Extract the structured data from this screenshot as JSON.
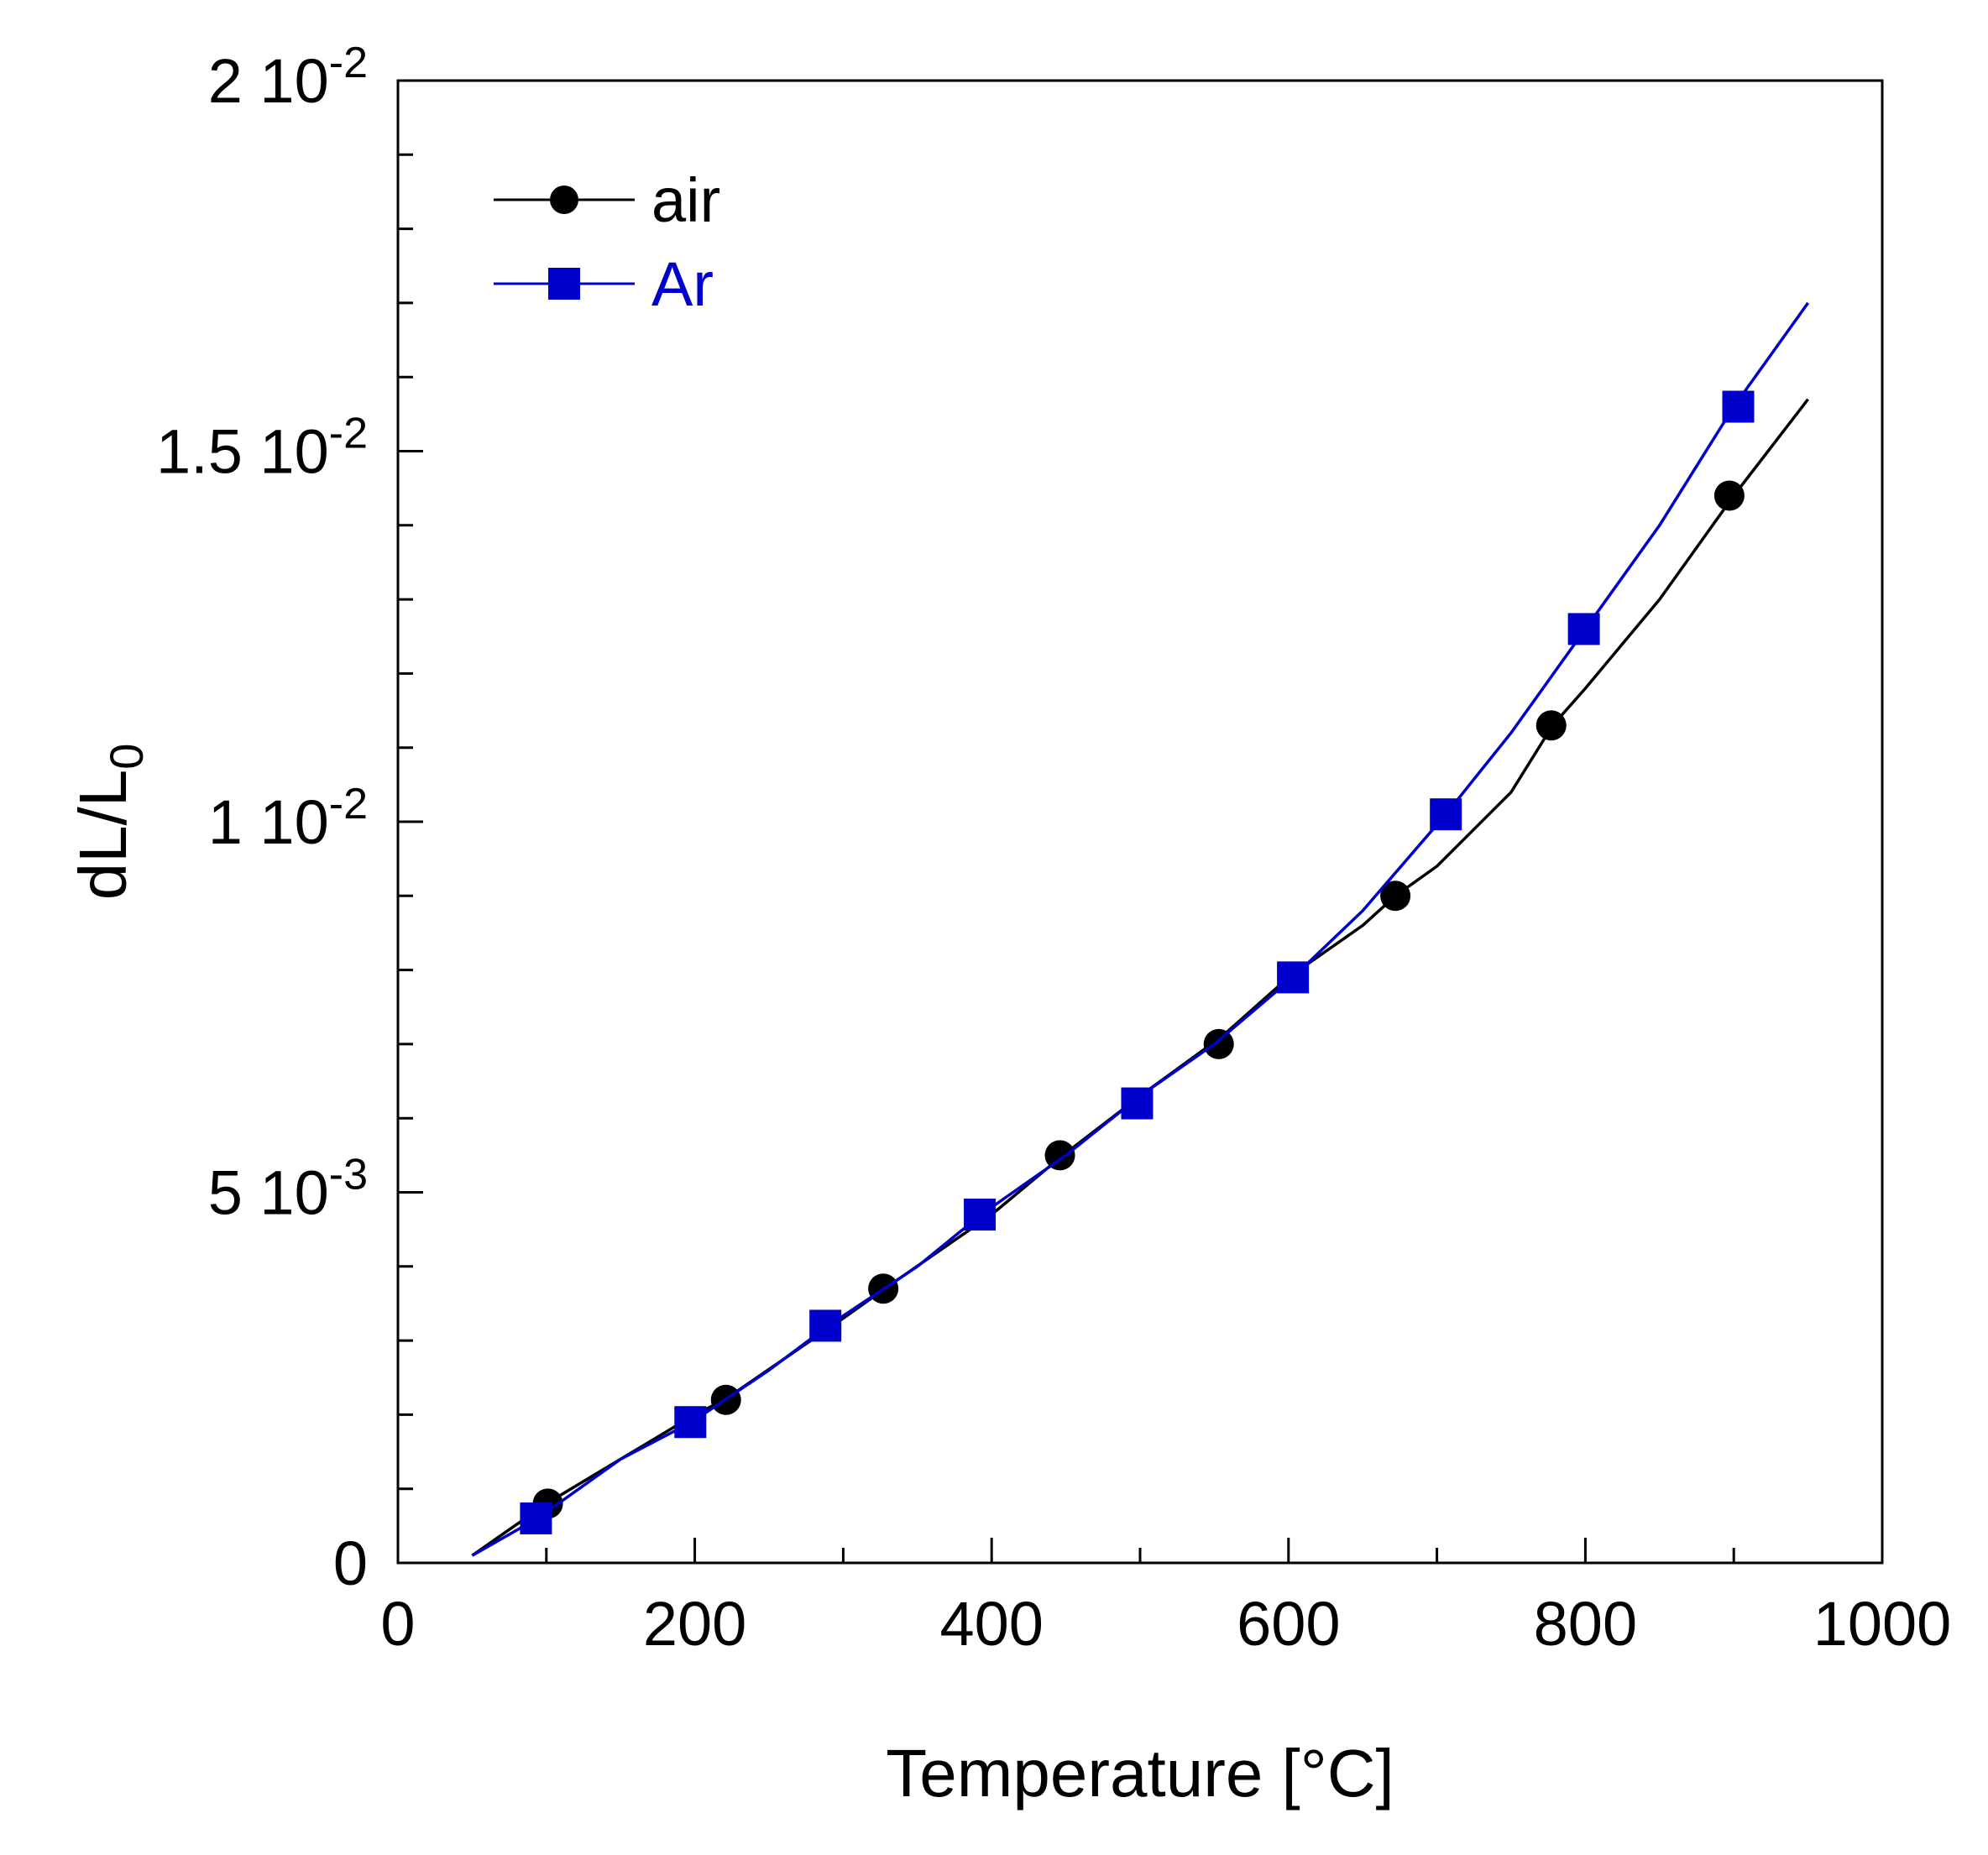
{
  "chart_data": {
    "type": "line",
    "xlabel": "Temperature [°C]",
    "ylabel_main": "dL/L",
    "ylabel_sub": "0",
    "xlim": [
      0,
      1000
    ],
    "ylim": [
      0,
      0.02
    ],
    "grid": false,
    "legend_position": "top-left",
    "x_ticks": [
      {
        "value": 0,
        "label": "0"
      },
      {
        "value": 200,
        "label": "200"
      },
      {
        "value": 400,
        "label": "400"
      },
      {
        "value": 600,
        "label": "600"
      },
      {
        "value": 800,
        "label": "800"
      },
      {
        "value": 1000,
        "label": "1000"
      }
    ],
    "y_ticks": [
      {
        "value": 0,
        "mant": "0",
        "exp": ""
      },
      {
        "value": 0.005,
        "mant": "5 10",
        "exp": "-3"
      },
      {
        "value": 0.01,
        "mant": "1 10",
        "exp": "-2"
      },
      {
        "value": 0.015,
        "mant": "1.5 10",
        "exp": "-2"
      },
      {
        "value": 0.02,
        "mant": "2 10",
        "exp": "-2"
      }
    ],
    "series": [
      {
        "name": "air",
        "color": "#000000",
        "marker": "circle",
        "curve": [
          [
            50,
            0.0001
          ],
          [
            100,
            0.0008
          ],
          [
            150,
            0.0014
          ],
          [
            200,
            0.002
          ],
          [
            220,
            0.0022
          ],
          [
            300,
            0.0033
          ],
          [
            328,
            0.0037
          ],
          [
            400,
            0.0047
          ],
          [
            448,
            0.0055
          ],
          [
            500,
            0.0063
          ],
          [
            555,
            0.0071
          ],
          [
            600,
            0.0079
          ],
          [
            650,
            0.0086
          ],
          [
            672,
            0.009
          ],
          [
            700,
            0.0094
          ],
          [
            750,
            0.0104
          ],
          [
            778,
            0.0113
          ],
          [
            800,
            0.0118
          ],
          [
            850,
            0.013
          ],
          [
            900,
            0.0144
          ],
          [
            950,
            0.0157
          ]
        ],
        "markers": [
          [
            101,
            0.0008
          ],
          [
            221,
            0.0022
          ],
          [
            327,
            0.0037
          ],
          [
            446,
            0.0055
          ],
          [
            553,
            0.007
          ],
          [
            672,
            0.009
          ],
          [
            777,
            0.0113
          ],
          [
            897,
            0.0144
          ]
        ]
      },
      {
        "name": "Ar",
        "color": "#0000cc",
        "marker": "square",
        "curve": [
          [
            50,
            0.0001
          ],
          [
            94,
            0.0006
          ],
          [
            150,
            0.0014
          ],
          [
            198,
            0.0019
          ],
          [
            250,
            0.0026
          ],
          [
            290,
            0.0032
          ],
          [
            350,
            0.004
          ],
          [
            393,
            0.0047
          ],
          [
            450,
            0.0055
          ],
          [
            500,
            0.0063
          ],
          [
            550,
            0.007
          ],
          [
            603,
            0.0079
          ],
          [
            650,
            0.0088
          ],
          [
            706,
            0.0101
          ],
          [
            750,
            0.0112
          ],
          [
            800,
            0.0126
          ],
          [
            850,
            0.014
          ],
          [
            900,
            0.0156
          ],
          [
            950,
            0.017
          ]
        ],
        "markers": [
          [
            93,
            0.0006
          ],
          [
            197,
            0.0019
          ],
          [
            288,
            0.0032
          ],
          [
            392,
            0.0047
          ],
          [
            498,
            0.0062
          ],
          [
            603,
            0.0079
          ],
          [
            706,
            0.0101
          ],
          [
            799,
            0.0126
          ],
          [
            903,
            0.0156
          ]
        ]
      }
    ]
  }
}
